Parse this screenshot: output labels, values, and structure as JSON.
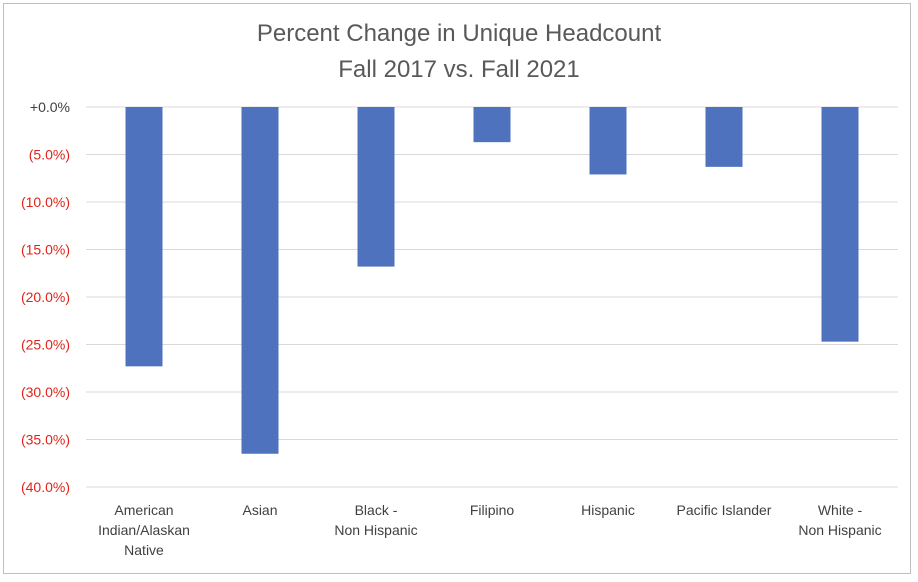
{
  "chart_data": {
    "type": "bar",
    "title": "Percent Change in Unique Headcount",
    "subtitle": "Fall 2017 vs. Fall 2021",
    "categories": [
      [
        "American",
        "Indian/Alaskan",
        "Native"
      ],
      [
        "Asian"
      ],
      [
        "Black -",
        "Non Hispanic"
      ],
      [
        "Filipino"
      ],
      [
        "Hispanic"
      ],
      [
        "Pacific Islander"
      ],
      [
        "White -",
        "Non Hispanic"
      ]
    ],
    "values": [
      -27.3,
      -36.5,
      -16.8,
      -3.7,
      -7.1,
      -6.3,
      -24.7
    ],
    "ylim": [
      -40,
      0
    ],
    "yticks": [
      0,
      -5,
      -10,
      -15,
      -20,
      -25,
      -30,
      -35,
      -40
    ],
    "ytick_labels": [
      "+0.0%",
      "(5.0%)",
      "(10.0%)",
      "(15.0%)",
      "(20.0%)",
      "(25.0%)",
      "(30.0%)",
      "(35.0%)",
      "(40.0%)"
    ],
    "grid": true,
    "legend": false,
    "colors": {
      "bar": "#4f72be",
      "negative_tick": "#e0241a",
      "zero_tick": "#404040",
      "grid": "#d9d9d9"
    }
  }
}
